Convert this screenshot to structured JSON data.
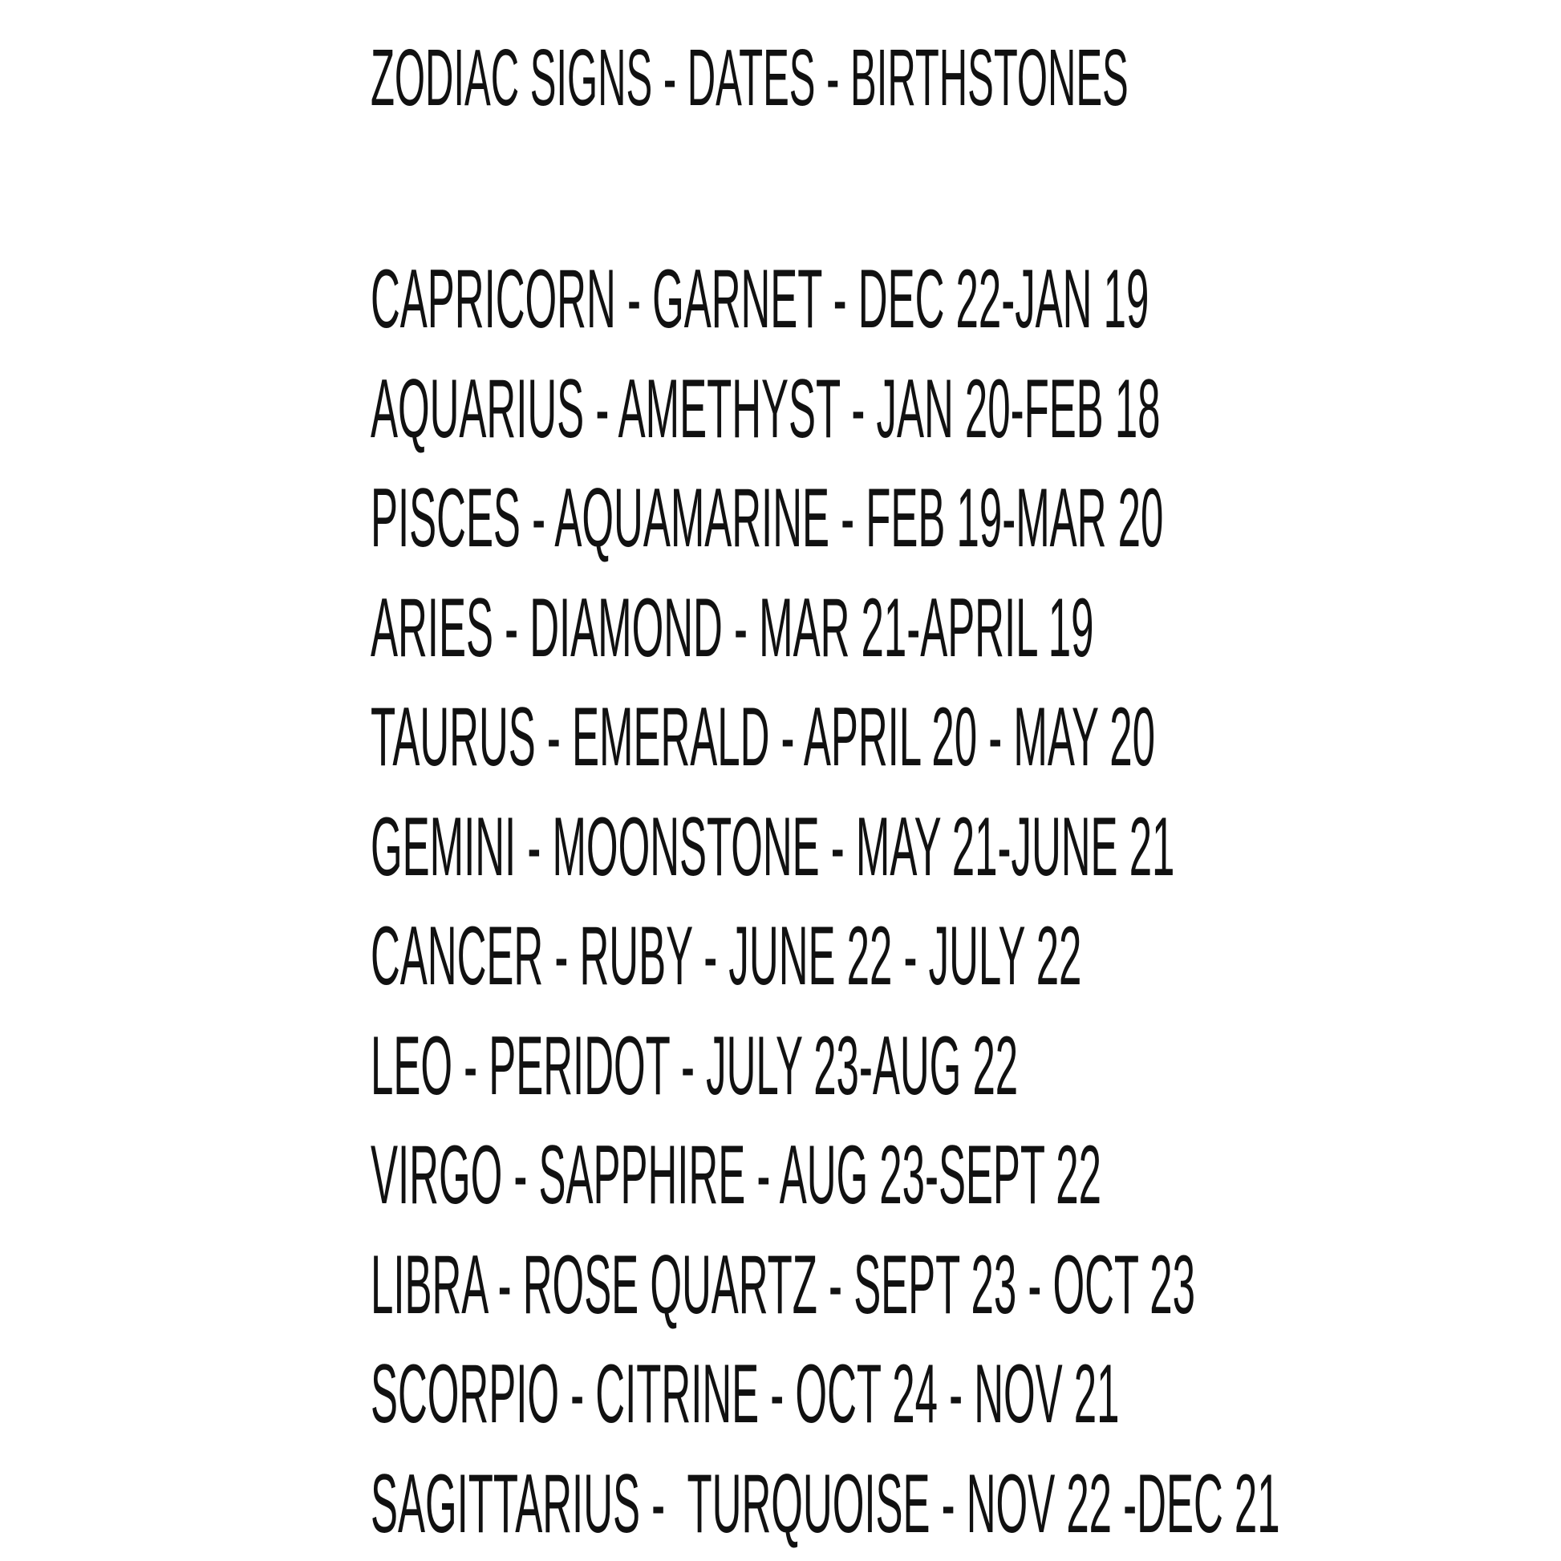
{
  "title": "Zodiac Signs - Dates - Birthstones",
  "rows": [
    "Capricorn - Garnet - Dec 22-Jan 19",
    "Aquarius - Amethyst - Jan 20-Feb 18",
    "Pisces - Aquamarine - Feb 19-Mar 20",
    "Aries - Diamond - Mar 21-April 19",
    "Taurus - Emerald - April 20 - May 20",
    "Gemini - Moonstone - May 21-June 21",
    "Cancer - Ruby - June 22 - July 22",
    "Leo - Peridot - July 23-Aug 22",
    "Virgo - Sapphire - Aug 23-Sept 22",
    "Libra - Rose Quartz - Sept 23 - Oct 23",
    "Scorpio - Citrine - Oct 24 - Nov 21",
    "Sagittarius -  Turquoise - Nov 22 -Dec 21"
  ]
}
